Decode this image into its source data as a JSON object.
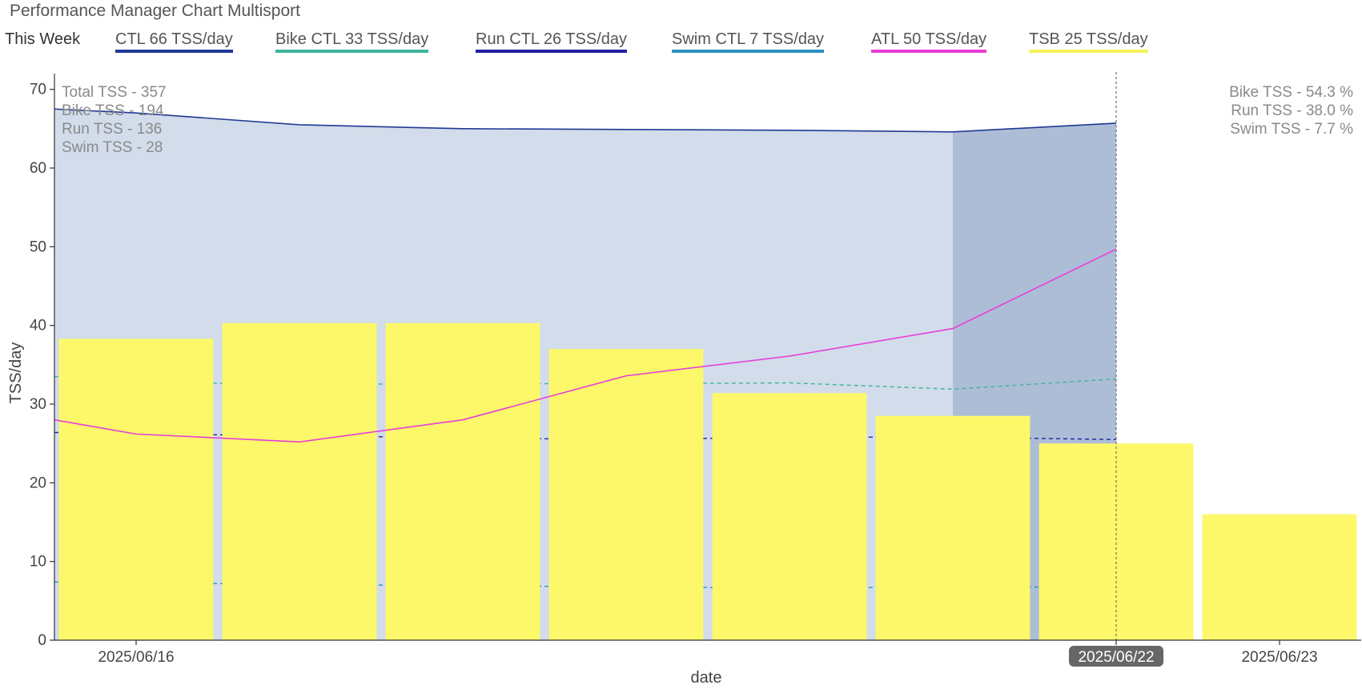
{
  "header": {
    "title": "Performance Manager Chart Multisport",
    "week_label": "This Week"
  },
  "legend": [
    {
      "label": "CTL  66 TSS/day",
      "color": "#1f3a93"
    },
    {
      "label": "Bike CTL  33 TSS/day",
      "color": "#3fb39b"
    },
    {
      "label": "Run CTL  26 TSS/day",
      "color": "#2020a0"
    },
    {
      "label": "Swim CTL  7 TSS/day",
      "color": "#2f8fc0"
    },
    {
      "label": "ATL  50 TSS/day",
      "color": "#e83ed8"
    },
    {
      "label": "TSB  25 TSS/day",
      "color": "#f6f25a"
    }
  ],
  "annotations": {
    "left": [
      "Total TSS - 357",
      "Bike TSS - 194",
      "Run TSS - 136",
      "Swim TSS - 28"
    ],
    "right": [
      "Bike TSS - 54.3 %",
      "Run TSS - 38.0 %",
      "Swim TSS - 7.7 %"
    ]
  },
  "chart_data": {
    "type": "bar",
    "xlabel": "date",
    "ylabel": "TSS/day",
    "ylim": [
      0,
      72
    ],
    "yticks": [
      0,
      10,
      20,
      30,
      40,
      50,
      60,
      70
    ],
    "x": [
      "2025/06/16",
      "2025/06/17",
      "2025/06/18",
      "2025/06/19",
      "2025/06/20",
      "2025/06/21",
      "2025/06/22",
      "2025/06/23"
    ],
    "xlim": [
      "2025/06/15 12:00",
      "2025/06/23 12:00"
    ],
    "x_tick_labels": [
      "2025/06/16",
      "2025/06/22",
      "2025/06/23"
    ],
    "highlighted_tick": "2025/06/22",
    "current_day": "2025/06/22",
    "this_week_start": "2025/06/21",
    "series": [
      {
        "name": "TSB",
        "kind": "bar",
        "color": "#fcf86a",
        "values": [
          38.3,
          40.3,
          40.3,
          37.0,
          31.4,
          28.5,
          25.0,
          16.0
        ]
      },
      {
        "name": "CTL",
        "kind": "area",
        "color": "#1f3a93",
        "x": [
          "2025/06/15 12:00",
          "2025/06/16",
          "2025/06/17",
          "2025/06/18",
          "2025/06/19",
          "2025/06/20",
          "2025/06/21",
          "2025/06/22"
        ],
        "values": [
          67.5,
          67.0,
          65.5,
          65.0,
          64.9,
          64.8,
          64.6,
          65.7
        ]
      },
      {
        "name": "ATL",
        "kind": "line",
        "color": "#e83ed8",
        "x": [
          "2025/06/15 12:00",
          "2025/06/16",
          "2025/06/17",
          "2025/06/18",
          "2025/06/19",
          "2025/06/20",
          "2025/06/21",
          "2025/06/22"
        ],
        "values": [
          28.0,
          26.2,
          25.2,
          28.0,
          33.6,
          36.1,
          39.6,
          49.7
        ]
      },
      {
        "name": "Bike CTL",
        "kind": "dashed-line",
        "color": "#3fb39b",
        "x": [
          "2025/06/15 12:00",
          "2025/06/16",
          "2025/06/17",
          "2025/06/18",
          "2025/06/19",
          "2025/06/20",
          "2025/06/21",
          "2025/06/22"
        ],
        "values": [
          33.5,
          32.8,
          32.5,
          32.6,
          32.6,
          32.7,
          31.9,
          33.2
        ]
      },
      {
        "name": "Run CTL",
        "kind": "dashed-line",
        "color": "#2020a0",
        "x": [
          "2025/06/15 12:00",
          "2025/06/16",
          "2025/06/17",
          "2025/06/18",
          "2025/06/19",
          "2025/06/20",
          "2025/06/21",
          "2025/06/22"
        ],
        "values": [
          26.4,
          26.2,
          26.0,
          25.7,
          25.5,
          25.8,
          25.8,
          25.5
        ]
      },
      {
        "name": "Swim CTL",
        "kind": "dashed-line",
        "color": "#2f8fc0",
        "x": [
          "2025/06/15 12:00",
          "2025/06/16",
          "2025/06/17",
          "2025/06/18",
          "2025/06/19",
          "2025/06/20",
          "2025/06/21",
          "2025/06/22"
        ],
        "values": [
          7.4,
          7.3,
          7.1,
          6.9,
          6.8,
          6.6,
          6.8,
          6.7
        ]
      }
    ],
    "colors": {
      "ctl_fill": "#d2dcea",
      "ctl_fill_this_week": "#adbdd6",
      "axis": "#333333",
      "badge_bg": "#666666"
    }
  }
}
